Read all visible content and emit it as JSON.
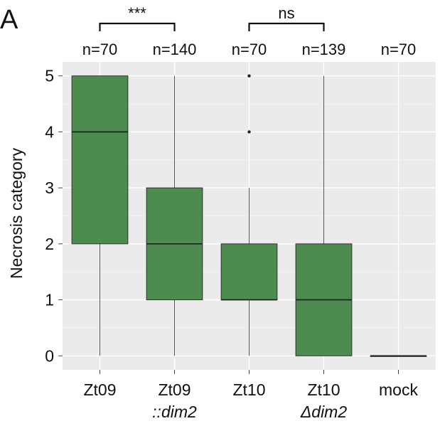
{
  "panel_label": "A",
  "chart_data": {
    "type": "box",
    "ylabel": "Necrosis category",
    "ylim": [
      -0.25,
      5.25
    ],
    "yticks": [
      0,
      1,
      2,
      3,
      4,
      5
    ],
    "grid": true,
    "groups": [
      {
        "line1": "Zt09",
        "line2": "",
        "n": "n=70",
        "min": 0,
        "q1": 2,
        "median": 4,
        "q3": 5,
        "max": 5,
        "outliers": []
      },
      {
        "line1": "Zt09",
        "line2": "::dim2",
        "n": "n=140",
        "min": 0,
        "q1": 1,
        "median": 2,
        "q3": 3,
        "max": 5,
        "outliers": []
      },
      {
        "line1": "Zt10",
        "line2": "",
        "n": "n=70",
        "min": 0,
        "q1": 1,
        "median": 1,
        "q3": 2,
        "max": 3,
        "outliers": [
          4,
          5
        ]
      },
      {
        "line1": "Zt10",
        "line2": "Δdim2",
        "n": "n=139",
        "min": 0,
        "q1": 0,
        "median": 1,
        "q3": 2,
        "max": 5,
        "outliers": []
      },
      {
        "line1": "mock",
        "line2": "",
        "n": "n=70",
        "min": 0,
        "q1": 0,
        "median": 0,
        "q3": 0,
        "max": 0,
        "outliers": []
      }
    ],
    "comparisons": [
      {
        "groups": [
          0,
          1
        ],
        "label": "***"
      },
      {
        "groups": [
          2,
          3
        ],
        "label": "ns"
      }
    ]
  }
}
